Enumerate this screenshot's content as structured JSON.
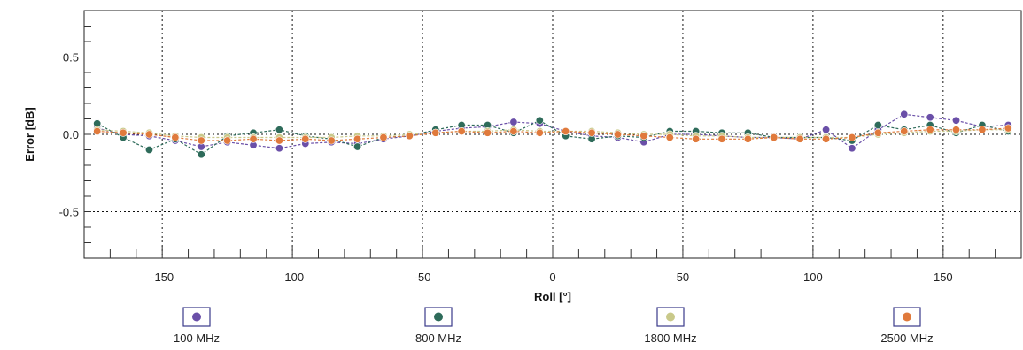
{
  "chart_data": {
    "type": "line",
    "xlabel": "Roll [°]",
    "ylabel": "Error [dB]",
    "xlim": [
      -180,
      180
    ],
    "ylim": [
      -0.8,
      0.8
    ],
    "x_ticks": [
      -150,
      -100,
      -50,
      0,
      50,
      100,
      150
    ],
    "x_tick_labels": [
      "-150",
      "-100",
      "-50",
      "0",
      "50",
      "100",
      "150"
    ],
    "y_ticks": [
      0.5,
      0.0,
      -0.5
    ],
    "y_tick_labels": [
      "0.5",
      "0.0",
      "-0.5"
    ],
    "grid": true,
    "legend_position": "bottom",
    "x": [
      -175,
      -165,
      -155,
      -145,
      -135,
      -125,
      -115,
      -105,
      -95,
      -85,
      -75,
      -65,
      -55,
      -45,
      -35,
      -25,
      -15,
      -5,
      5,
      15,
      25,
      35,
      45,
      55,
      65,
      75,
      85,
      95,
      105,
      115,
      125,
      135,
      145,
      155,
      165,
      175
    ],
    "series": [
      {
        "name": "100 MHz",
        "color": "#6a4fa8",
        "values": [
          0.04,
          0.0,
          -0.01,
          -0.04,
          -0.08,
          -0.05,
          -0.07,
          -0.09,
          -0.06,
          -0.05,
          -0.06,
          -0.03,
          -0.01,
          0.02,
          0.04,
          0.05,
          0.08,
          0.07,
          0.02,
          -0.01,
          -0.02,
          -0.05,
          0.0,
          0.0,
          -0.01,
          -0.02,
          -0.02,
          -0.03,
          0.03,
          -0.09,
          0.03,
          0.13,
          0.11,
          0.09,
          0.05,
          0.06
        ]
      },
      {
        "name": "800 MHz",
        "color": "#2e6b5a",
        "values": [
          0.07,
          -0.02,
          -0.1,
          -0.03,
          -0.13,
          -0.01,
          0.01,
          0.03,
          -0.01,
          -0.03,
          -0.08,
          -0.02,
          -0.01,
          0.03,
          0.06,
          0.06,
          0.01,
          0.09,
          -0.01,
          -0.03,
          -0.01,
          -0.02,
          0.02,
          0.02,
          0.01,
          0.01,
          -0.02,
          -0.02,
          -0.02,
          -0.04,
          0.06,
          0.03,
          0.06,
          0.01,
          0.06,
          0.02
        ]
      },
      {
        "name": "1800 MHz",
        "color": "#c9c98a",
        "values": [
          0.03,
          0.02,
          0.01,
          -0.01,
          -0.02,
          -0.02,
          -0.02,
          -0.02,
          -0.02,
          -0.02,
          -0.01,
          -0.01,
          0.0,
          0.01,
          0.02,
          0.02,
          0.03,
          0.02,
          0.02,
          0.02,
          0.01,
          0.0,
          0.0,
          -0.01,
          -0.01,
          -0.02,
          -0.02,
          -0.02,
          -0.02,
          -0.02,
          0.0,
          0.01,
          0.02,
          0.02,
          0.03,
          0.03
        ]
      },
      {
        "name": "2500 MHz",
        "color": "#e07a3c",
        "values": [
          0.02,
          0.01,
          0.0,
          -0.02,
          -0.04,
          -0.04,
          -0.03,
          -0.04,
          -0.03,
          -0.04,
          -0.03,
          -0.02,
          -0.01,
          0.01,
          0.02,
          0.01,
          0.02,
          0.01,
          0.02,
          0.01,
          0.0,
          -0.01,
          -0.02,
          -0.03,
          -0.03,
          -0.03,
          -0.02,
          -0.03,
          -0.03,
          -0.02,
          0.01,
          0.02,
          0.03,
          0.03,
          0.03,
          0.04
        ]
      }
    ]
  }
}
